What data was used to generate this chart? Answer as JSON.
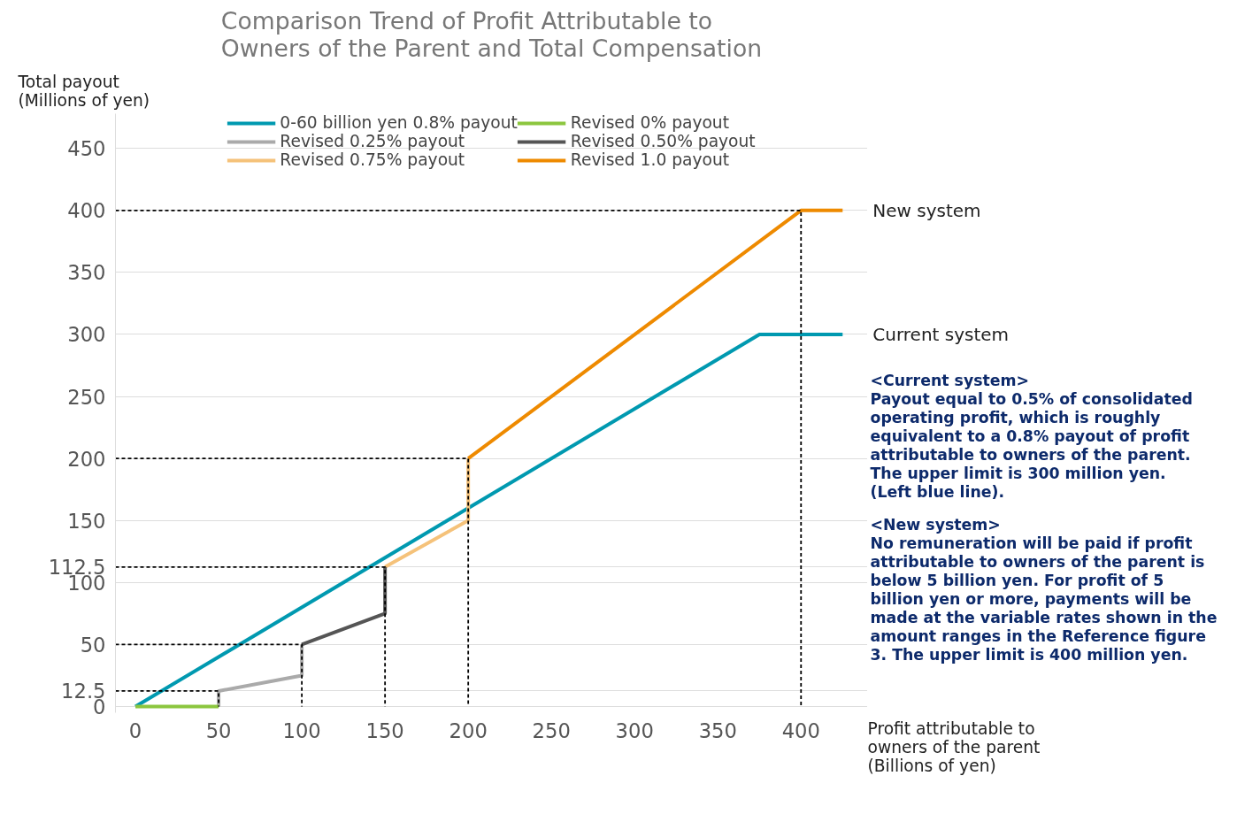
{
  "chart_data": {
    "type": "line",
    "title": "Comparison Trend of Profit Attributable to\nOwners of the Parent and Total Compensation",
    "ylabel": "Total payout\n(Millions of yen)",
    "xlabel": "Profit attributable to\nowners of the parent\n(Billions of yen)",
    "xlim": [
      -12,
      440
    ],
    "ylim": [
      -5,
      478
    ],
    "xticks": [
      0,
      50,
      100,
      150,
      200,
      250,
      300,
      350,
      400
    ],
    "yticks": [
      0,
      12.5,
      50,
      100,
      112.5,
      150,
      200,
      250,
      300,
      350,
      400,
      450
    ],
    "grid": "y",
    "legend": "top",
    "line_style": "solid",
    "marker": "none",
    "series": [
      {
        "name": "0-60 billion yen 0.8% payout",
        "color": "#0099b0",
        "x": [
          0,
          375,
          425
        ],
        "values": [
          0,
          300,
          300
        ]
      },
      {
        "name": "Revised 0.25% payout",
        "color": "#aaaaaa",
        "x": [
          50,
          50,
          100,
          100
        ],
        "values": [
          0,
          12.5,
          25,
          50
        ]
      },
      {
        "name": "Revised 0.75% payout",
        "color": "#f5c27a",
        "x": [
          150,
          200,
          200
        ],
        "values": [
          112.5,
          150,
          200
        ]
      },
      {
        "name": "Revised 0% payout",
        "color": "#8cc63f",
        "x": [
          0,
          50
        ],
        "values": [
          0,
          0
        ]
      },
      {
        "name": "Revised 0.50% payout",
        "color": "#555555",
        "x": [
          100,
          150,
          150
        ],
        "values": [
          50,
          75,
          112.5
        ]
      },
      {
        "name": "Revised 1.0 payout",
        "color": "#ee8a00",
        "x": [
          200,
          400,
          425
        ],
        "values": [
          200,
          400,
          400
        ]
      },
      {
        "color": "#000000",
        "line_style": "dashed",
        "x": [
          -12,
          50,
          50
        ],
        "values": [
          12.5,
          12.5,
          0
        ]
      },
      {
        "color": "#000000",
        "line_style": "dashed",
        "x": [
          -12,
          100,
          100
        ],
        "values": [
          50,
          50,
          0
        ]
      },
      {
        "color": "#000000",
        "line_style": "dashed",
        "x": [
          -12,
          150,
          150
        ],
        "values": [
          112.5,
          112.5,
          0
        ]
      },
      {
        "color": "#000000",
        "line_style": "dashed",
        "x": [
          -12,
          200,
          200
        ],
        "values": [
          200,
          200,
          0
        ]
      },
      {
        "color": "#000000",
        "line_style": "dashed",
        "x": [
          -12,
          400,
          400
        ],
        "values": [
          400,
          400,
          0
        ]
      }
    ],
    "annotations": [
      {
        "text": "New system",
        "x": 425,
        "y": 400
      },
      {
        "text": "Current system",
        "x": 425,
        "y": 300
      },
      "<Current system>",
      "Payout equal to 0.5% of consolidated operating profit, which is roughly equivalent to a 0.8% payout of profit attributable to owners of the parent.",
      "The upper limit is 300 million yen. (Left blue line).",
      "<New system>",
      "No remuneration will be paid if profit attributable to owners of the parent is below 5 billion yen. For profit of 5 billion yen or more, payments will be made at the variable rates shown in the amount ranges in the Reference figure 3. The upper limit is 400 million yen."
    ]
  }
}
